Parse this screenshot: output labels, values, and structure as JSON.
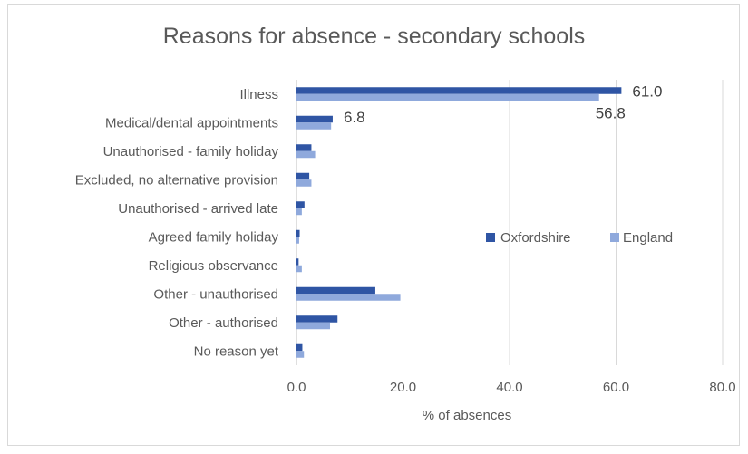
{
  "chart_data": {
    "type": "bar",
    "orientation": "horizontal",
    "title": "Reasons for absence - secondary schools",
    "xlabel": "% of absences",
    "ylabel": "",
    "xlim": [
      0,
      80
    ],
    "xticks": [
      "0.0",
      "20.0",
      "40.0",
      "60.0",
      "80.0"
    ],
    "grid": true,
    "legend_position": "right",
    "categories": [
      "Illness",
      "Medical/dental appointments",
      "Unauthorised - family holiday",
      "Excluded, no alternative provision",
      "Unauthorised - arrived late",
      "Agreed family holiday",
      "Religious observance",
      "Other - unauthorised",
      "Other - authorised",
      "No reason yet"
    ],
    "series": [
      {
        "name": "Oxfordshire",
        "color": "#2f55a4",
        "values": [
          61.0,
          6.8,
          2.8,
          2.4,
          1.5,
          0.6,
          0.4,
          14.8,
          7.7,
          1.1
        ],
        "data_labels": [
          "61.0",
          "6.8",
          "",
          "",
          "",
          "",
          "",
          "",
          "",
          ""
        ]
      },
      {
        "name": "England",
        "color": "#8fa9dc",
        "values": [
          56.8,
          6.5,
          3.5,
          2.8,
          1.0,
          0.5,
          1.0,
          19.5,
          6.3,
          1.4
        ],
        "data_labels": [
          "56.8",
          "",
          "",
          "",
          "",
          "",
          "",
          "",
          "",
          ""
        ]
      }
    ]
  }
}
